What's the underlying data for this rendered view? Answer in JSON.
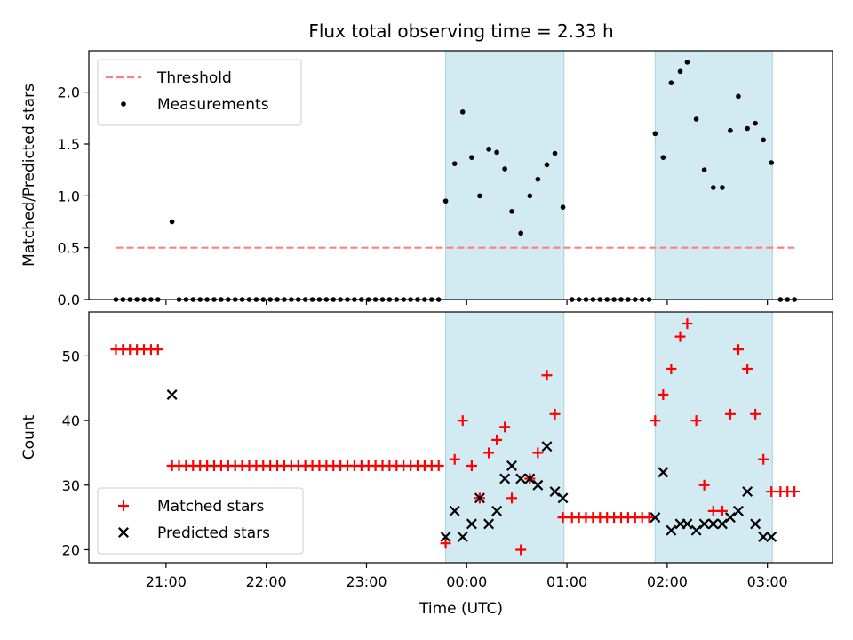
{
  "chart_data": {
    "title": "Flux total observing time = 2.33 h",
    "xlabel": "Time (UTC)",
    "x_unit": "hours since 00:00 UTC",
    "x_ticks": [
      {
        "v": -3,
        "label": "21:00"
      },
      {
        "v": -2,
        "label": "22:00"
      },
      {
        "v": -1,
        "label": "23:00"
      },
      {
        "v": 0,
        "label": "00:00"
      },
      {
        "v": 1,
        "label": "01:00"
      },
      {
        "v": 2,
        "label": "02:00"
      },
      {
        "v": 3,
        "label": "03:00"
      }
    ],
    "xlim": [
      -3.77,
      3.65
    ],
    "shaded_intervals": [
      [
        -0.21,
        0.97
      ],
      [
        1.88,
        3.05
      ]
    ],
    "shade_color": "#add8e6",
    "panels": [
      {
        "type": "scatter",
        "ylabel": "Matched/Predicted stars",
        "ylim": [
          0,
          2.4
        ],
        "y_ticks": [
          0.0,
          0.5,
          1.0,
          1.5,
          2.0
        ],
        "y_tick_labels": [
          "0.0",
          "0.5",
          "1.0",
          "1.5",
          "2.0"
        ],
        "legend": {
          "position": "upper-left"
        },
        "series": [
          {
            "name": "Threshold",
            "kind": "dashed-line",
            "color": "#ff7f7f",
            "points": [
              [
                -3.5,
                0.5
              ],
              [
                3.27,
                0.5
              ]
            ]
          },
          {
            "name": "Measurements",
            "kind": "dot",
            "color": "#000000",
            "points": [
              [
                -3.5,
                0
              ],
              [
                -3.43,
                0
              ],
              [
                -3.36,
                0
              ],
              [
                -3.29,
                0
              ],
              [
                -3.22,
                0
              ],
              [
                -3.15,
                0
              ],
              [
                -3.08,
                0
              ],
              [
                -2.94,
                0.75
              ],
              [
                -2.87,
                0
              ],
              [
                -2.8,
                0
              ],
              [
                -2.73,
                0
              ],
              [
                -2.66,
                0
              ],
              [
                -2.59,
                0
              ],
              [
                -2.52,
                0
              ],
              [
                -2.45,
                0
              ],
              [
                -2.38,
                0
              ],
              [
                -2.31,
                0
              ],
              [
                -2.24,
                0
              ],
              [
                -2.17,
                0
              ],
              [
                -2.1,
                0
              ],
              [
                -2.03,
                0
              ],
              [
                -1.96,
                0
              ],
              [
                -1.89,
                0
              ],
              [
                -1.82,
                0
              ],
              [
                -1.75,
                0
              ],
              [
                -1.68,
                0
              ],
              [
                -1.61,
                0
              ],
              [
                -1.54,
                0
              ],
              [
                -1.47,
                0
              ],
              [
                -1.4,
                0
              ],
              [
                -1.33,
                0
              ],
              [
                -1.26,
                0
              ],
              [
                -1.19,
                0
              ],
              [
                -1.12,
                0
              ],
              [
                -1.05,
                0
              ],
              [
                -0.98,
                0
              ],
              [
                -0.91,
                0
              ],
              [
                -0.84,
                0
              ],
              [
                -0.77,
                0
              ],
              [
                -0.7,
                0
              ],
              [
                -0.63,
                0
              ],
              [
                -0.56,
                0
              ],
              [
                -0.49,
                0
              ],
              [
                -0.42,
                0
              ],
              [
                -0.35,
                0
              ],
              [
                -0.28,
                0
              ],
              [
                -0.21,
                0.95
              ],
              [
                -0.12,
                1.31
              ],
              [
                -0.04,
                1.81
              ],
              [
                0.05,
                1.37
              ],
              [
                0.13,
                1.0
              ],
              [
                0.22,
                1.45
              ],
              [
                0.3,
                1.42
              ],
              [
                0.38,
                1.26
              ],
              [
                0.45,
                0.85
              ],
              [
                0.54,
                0.64
              ],
              [
                0.63,
                1.0
              ],
              [
                0.71,
                1.16
              ],
              [
                0.8,
                1.3
              ],
              [
                0.88,
                1.41
              ],
              [
                0.96,
                0.89
              ],
              [
                1.05,
                0
              ],
              [
                1.12,
                0
              ],
              [
                1.19,
                0
              ],
              [
                1.26,
                0
              ],
              [
                1.33,
                0
              ],
              [
                1.4,
                0
              ],
              [
                1.47,
                0
              ],
              [
                1.54,
                0
              ],
              [
                1.61,
                0
              ],
              [
                1.68,
                0
              ],
              [
                1.75,
                0
              ],
              [
                1.82,
                0
              ],
              [
                1.88,
                1.6
              ],
              [
                1.96,
                1.37
              ],
              [
                2.04,
                2.09
              ],
              [
                2.13,
                2.2
              ],
              [
                2.2,
                2.29
              ],
              [
                2.29,
                1.74
              ],
              [
                2.37,
                1.25
              ],
              [
                2.46,
                1.08
              ],
              [
                2.55,
                1.08
              ],
              [
                2.63,
                1.63
              ],
              [
                2.71,
                1.96
              ],
              [
                2.8,
                1.65
              ],
              [
                2.88,
                1.7
              ],
              [
                2.96,
                1.54
              ],
              [
                3.04,
                1.32
              ],
              [
                3.13,
                0
              ],
              [
                3.2,
                0
              ],
              [
                3.27,
                0
              ]
            ]
          }
        ]
      },
      {
        "type": "scatter",
        "ylabel": "Count",
        "ylim": [
          18,
          56.8
        ],
        "y_ticks": [
          20,
          30,
          40,
          50
        ],
        "y_tick_labels": [
          "20",
          "30",
          "40",
          "50"
        ],
        "legend": {
          "position": "lower-left"
        },
        "series": [
          {
            "name": "Matched stars",
            "kind": "plus",
            "color": "#ff0000",
            "points": [
              [
                -3.5,
                51
              ],
              [
                -3.43,
                51
              ],
              [
                -3.36,
                51
              ],
              [
                -3.29,
                51
              ],
              [
                -3.22,
                51
              ],
              [
                -3.15,
                51
              ],
              [
                -3.08,
                51
              ],
              [
                -2.94,
                33
              ],
              [
                -2.87,
                33
              ],
              [
                -2.8,
                33
              ],
              [
                -2.73,
                33
              ],
              [
                -2.66,
                33
              ],
              [
                -2.59,
                33
              ],
              [
                -2.52,
                33
              ],
              [
                -2.45,
                33
              ],
              [
                -2.38,
                33
              ],
              [
                -2.31,
                33
              ],
              [
                -2.24,
                33
              ],
              [
                -2.17,
                33
              ],
              [
                -2.1,
                33
              ],
              [
                -2.03,
                33
              ],
              [
                -1.96,
                33
              ],
              [
                -1.89,
                33
              ],
              [
                -1.82,
                33
              ],
              [
                -1.75,
                33
              ],
              [
                -1.68,
                33
              ],
              [
                -1.61,
                33
              ],
              [
                -1.54,
                33
              ],
              [
                -1.47,
                33
              ],
              [
                -1.4,
                33
              ],
              [
                -1.33,
                33
              ],
              [
                -1.26,
                33
              ],
              [
                -1.19,
                33
              ],
              [
                -1.12,
                33
              ],
              [
                -1.05,
                33
              ],
              [
                -0.98,
                33
              ],
              [
                -0.91,
                33
              ],
              [
                -0.84,
                33
              ],
              [
                -0.77,
                33
              ],
              [
                -0.7,
                33
              ],
              [
                -0.63,
                33
              ],
              [
                -0.56,
                33
              ],
              [
                -0.49,
                33
              ],
              [
                -0.42,
                33
              ],
              [
                -0.35,
                33
              ],
              [
                -0.28,
                33
              ],
              [
                -0.21,
                21
              ],
              [
                -0.12,
                34
              ],
              [
                -0.04,
                40
              ],
              [
                0.05,
                33
              ],
              [
                0.13,
                28
              ],
              [
                0.22,
                35
              ],
              [
                0.3,
                37
              ],
              [
                0.38,
                39
              ],
              [
                0.45,
                28
              ],
              [
                0.54,
                20
              ],
              [
                0.63,
                31
              ],
              [
                0.71,
                35
              ],
              [
                0.8,
                47
              ],
              [
                0.88,
                41
              ],
              [
                0.96,
                25
              ],
              [
                1.05,
                25
              ],
              [
                1.12,
                25
              ],
              [
                1.19,
                25
              ],
              [
                1.26,
                25
              ],
              [
                1.33,
                25
              ],
              [
                1.4,
                25
              ],
              [
                1.47,
                25
              ],
              [
                1.54,
                25
              ],
              [
                1.61,
                25
              ],
              [
                1.68,
                25
              ],
              [
                1.75,
                25
              ],
              [
                1.82,
                25
              ],
              [
                1.88,
                40
              ],
              [
                1.96,
                44
              ],
              [
                2.04,
                48
              ],
              [
                2.13,
                53
              ],
              [
                2.2,
                55
              ],
              [
                2.29,
                40
              ],
              [
                2.37,
                30
              ],
              [
                2.46,
                26
              ],
              [
                2.55,
                26
              ],
              [
                2.63,
                41
              ],
              [
                2.71,
                51
              ],
              [
                2.8,
                48
              ],
              [
                2.88,
                41
              ],
              [
                2.96,
                34
              ],
              [
                3.04,
                29
              ],
              [
                3.13,
                29
              ],
              [
                3.2,
                29
              ],
              [
                3.27,
                29
              ]
            ]
          },
          {
            "name": "Predicted stars",
            "kind": "cross",
            "color": "#000000",
            "points": [
              [
                -2.94,
                44
              ],
              [
                -0.21,
                22
              ],
              [
                -0.12,
                26
              ],
              [
                -0.04,
                22
              ],
              [
                0.05,
                24
              ],
              [
                0.13,
                28
              ],
              [
                0.22,
                24
              ],
              [
                0.3,
                26
              ],
              [
                0.38,
                31
              ],
              [
                0.45,
                33
              ],
              [
                0.54,
                31
              ],
              [
                0.63,
                31
              ],
              [
                0.71,
                30
              ],
              [
                0.8,
                36
              ],
              [
                0.88,
                29
              ],
              [
                0.96,
                28
              ],
              [
                1.88,
                25
              ],
              [
                1.96,
                32
              ],
              [
                2.04,
                23
              ],
              [
                2.13,
                24
              ],
              [
                2.2,
                24
              ],
              [
                2.29,
                23
              ],
              [
                2.37,
                24
              ],
              [
                2.46,
                24
              ],
              [
                2.55,
                24
              ],
              [
                2.63,
                25
              ],
              [
                2.71,
                26
              ],
              [
                2.8,
                29
              ],
              [
                2.88,
                24
              ],
              [
                2.96,
                22
              ],
              [
                3.04,
                22
              ]
            ]
          }
        ]
      }
    ]
  }
}
